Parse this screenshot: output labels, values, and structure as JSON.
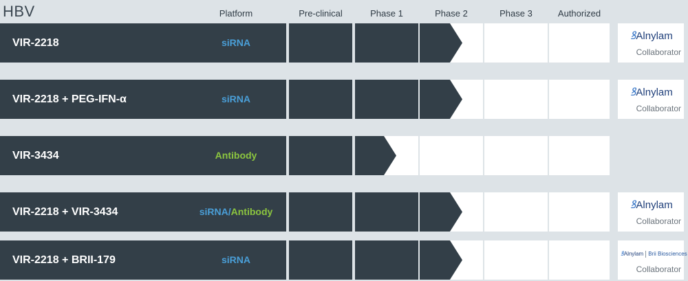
{
  "section_title": "HBV",
  "headers": {
    "platform": "Platform",
    "preclinical": "Pre-clinical",
    "phase1": "Phase 1",
    "phase2": "Phase 2",
    "phase3": "Phase 3",
    "authorized": "Authorized"
  },
  "rows": [
    {
      "name": "VIR-2218",
      "platform": "siRNA",
      "stage": "Phase 2",
      "collaborator": {
        "logo": "Alnylam",
        "label": "Collaborator"
      }
    },
    {
      "name": "VIR-2218 + PEG-IFN-α",
      "platform": "siRNA",
      "stage": "Phase 2",
      "collaborator": {
        "logo": "Alnylam",
        "label": "Collaborator"
      }
    },
    {
      "name": "VIR-3434",
      "platform": "Antibody",
      "stage": "Phase 1"
    },
    {
      "name": "VIR-2218 + VIR-3434",
      "platform_a": "siRNA",
      "platform_sep": "/",
      "platform_b": "Antibody",
      "stage": "Phase 2",
      "collaborator": {
        "logo": "Alnylam",
        "label": "Collaborator"
      }
    },
    {
      "name": "VIR-2218 + BRII-179",
      "platform": "siRNA",
      "stage": "Phase 2",
      "collaborator": {
        "logo": "Alnylam",
        "logo2": "Brii",
        "logo2_sub": "Biosciences",
        "label": "Collaborator"
      }
    }
  ],
  "colors": {
    "dark": "#333f48",
    "sirna": "#4a9fd8",
    "antibody": "#8cc63f",
    "background": "#dde3e7"
  },
  "icons": {
    "alnylam_logo": "alnylam-logo",
    "brii_logo": "brii-biosciences-logo"
  }
}
